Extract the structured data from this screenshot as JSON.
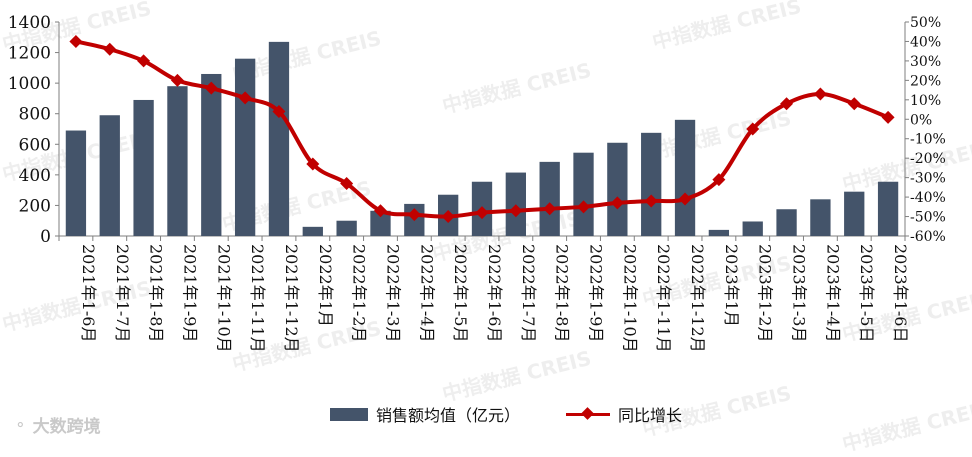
{
  "chart_data": {
    "type": "bar",
    "title": "",
    "categories": [
      "2021年1-6月",
      "2021年1-7月",
      "2021年1-8月",
      "2021年1-9月",
      "2021年1-10月",
      "2021年1-11月",
      "2021年1-12月",
      "2022年1月",
      "2022年1-2月",
      "2022年1-3月",
      "2022年1-4月",
      "2022年1-5月",
      "2022年1-6月",
      "2022年1-7月",
      "2022年1-8月",
      "2022年1-9月",
      "2022年1-10月",
      "2022年1-11月",
      "2022年1-12月",
      "2023年1月",
      "2023年1-2月",
      "2023年1-3月",
      "2023年1-4月",
      "2023年1-5日",
      "2023年1-6日"
    ],
    "series": [
      {
        "name": "销售额均值（亿元）",
        "type": "bar",
        "axis": "left",
        "color": "#44546a",
        "values": [
          690,
          790,
          890,
          980,
          1060,
          1160,
          1270,
          60,
          100,
          165,
          210,
          270,
          355,
          415,
          485,
          545,
          610,
          675,
          760,
          40,
          95,
          175,
          240,
          290,
          355
        ]
      },
      {
        "name": "同比增长",
        "type": "line",
        "axis": "right",
        "color": "#c00000",
        "values": [
          40,
          36,
          30,
          20,
          16,
          11,
          4,
          -23,
          -33,
          -47,
          -49,
          -50,
          -48,
          -47,
          -46,
          -45,
          -43,
          -42,
          -41,
          -31,
          -5,
          8,
          13,
          8,
          1
        ]
      }
    ],
    "y_left": {
      "min": 0,
      "max": 1400,
      "step": 200,
      "ticks": [
        "0",
        "200",
        "400",
        "600",
        "800",
        "1000",
        "1200",
        "1400"
      ]
    },
    "y_right": {
      "min": -60,
      "max": 50,
      "step": 10,
      "ticks": [
        "-60%",
        "-50%",
        "-40%",
        "-30%",
        "-20%",
        "-10%",
        "0%",
        "10%",
        "20%",
        "30%",
        "40%",
        "50%"
      ]
    },
    "grid": false,
    "legend": "bottom-center"
  },
  "watermark": {
    "text": "中指数据 CREIS"
  },
  "brand": {
    "text": "大数跨境",
    "icon": "chat-bubble-icon"
  }
}
